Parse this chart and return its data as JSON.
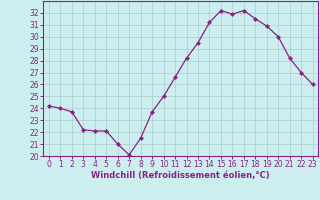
{
  "x": [
    0,
    1,
    2,
    3,
    4,
    5,
    6,
    7,
    8,
    9,
    10,
    11,
    12,
    13,
    14,
    15,
    16,
    17,
    18,
    19,
    20,
    21,
    22,
    23
  ],
  "y": [
    24.2,
    24.0,
    23.7,
    22.2,
    22.1,
    22.1,
    21.0,
    20.1,
    21.5,
    23.7,
    25.0,
    26.6,
    28.2,
    29.5,
    31.2,
    32.2,
    31.9,
    32.2,
    31.5,
    30.9,
    30.0,
    28.2,
    27.0,
    26.0
  ],
  "line_color": "#882288",
  "marker": "D",
  "marker_size": 2.0,
  "bg_color": "#cceeee",
  "grid_color": "#aacccc",
  "xlabel": "Windchill (Refroidissement éolien,°C)",
  "xlabel_color": "#882288",
  "tick_color": "#882288",
  "ylim": [
    20,
    33
  ],
  "xlim": [
    -0.5,
    23.5
  ],
  "yticks": [
    20,
    21,
    22,
    23,
    24,
    25,
    26,
    27,
    28,
    29,
    30,
    31,
    32
  ],
  "xticks": [
    0,
    1,
    2,
    3,
    4,
    5,
    6,
    7,
    8,
    9,
    10,
    11,
    12,
    13,
    14,
    15,
    16,
    17,
    18,
    19,
    20,
    21,
    22,
    23
  ],
  "spine_color": "#882288",
  "tick_fontsize": 5.5,
  "xlabel_fontsize": 6.0,
  "linewidth": 0.9
}
